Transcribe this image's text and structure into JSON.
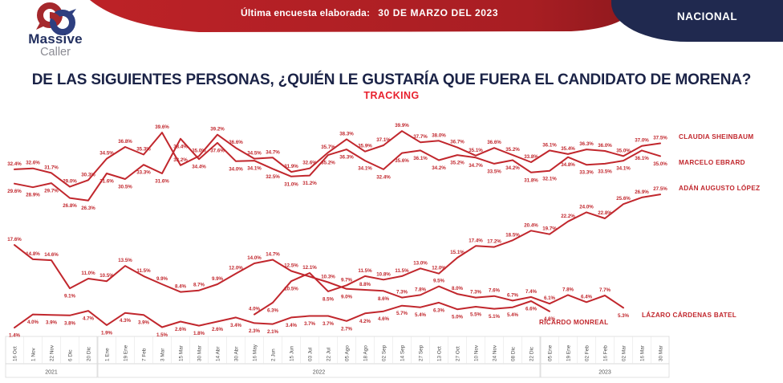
{
  "header": {
    "logo": {
      "line1": "Massive",
      "line2": "Caller"
    },
    "banner": {
      "label": "Última encuesta elaborada:",
      "date": "30 DE MARZO DEL 2023"
    },
    "region_badge": "NACIONAL"
  },
  "title": "DE LAS SIGUIENTES PERSONAS, ¿QUIÉN LE GUSTARÍA QUE FUERA EL CANDIDATO DE MORENA?",
  "subtitle": "TRACKING",
  "colors": {
    "line_red": "#c1272d",
    "title_navy": "#1b2347",
    "tracking_red": "#e8212e",
    "banner_red": "#b01f24",
    "badge_navy": "#20294f"
  },
  "chart_data": {
    "type": "line",
    "unit": "%",
    "ylim": [
      0,
      42
    ],
    "grid": false,
    "legend_position": "right-of-line-ends",
    "x_labels": [
      "16 Oct",
      "1 Nov",
      "22 Nov",
      "6 Dic",
      "20 Dic",
      "1 Ene",
      "19 Ene",
      "7 Feb",
      "3 Mar",
      "15 Mar",
      "30 Mar",
      "14 Abr",
      "30 Abr",
      "16 May",
      "2 Jun",
      "15 Jun",
      "03 Jul",
      "22 Jul",
      "05 Ago",
      "18 Ago",
      "02 Sep",
      "14 Sep",
      "27 Sep",
      "13 Oct",
      "27 Oct",
      "10 Nov",
      "24 Nov",
      "08 Dic",
      "22 Dic",
      "05 Ene",
      "19 Ene",
      "02 Feb",
      "16 Feb",
      "02 Mar",
      "16 Mar",
      "30 Mar"
    ],
    "year_groups": [
      {
        "label": "2021",
        "start": 0,
        "end": 4
      },
      {
        "label": "2022",
        "start": 5,
        "end": 28
      },
      {
        "label": "2023",
        "start": 29,
        "end": 35
      }
    ],
    "series": [
      {
        "id": "claudia-sheinbaum",
        "name": "CLAUDIA SHEINBAUM",
        "color": "#c1272d",
        "values": [
          32.4,
          32.6,
          31.7,
          29.0,
          30.3,
          34.5,
          36.8,
          35.3,
          39.6,
          33.2,
          35.0,
          39.2,
          36.6,
          34.5,
          34.7,
          31.9,
          32.6,
          35.7,
          38.3,
          35.9,
          37.1,
          39.9,
          37.7,
          38.0,
          36.7,
          35.1,
          36.6,
          35.2,
          33.8,
          36.1,
          35.4,
          36.3,
          36.0,
          35.0,
          37.0,
          37.5
        ]
      },
      {
        "id": "marcelo-ebrard",
        "name": "MARCELO EBRARD",
        "color": "#c1272d",
        "values": [
          29.6,
          28.9,
          29.7,
          26.8,
          26.3,
          31.6,
          30.5,
          33.3,
          31.6,
          38.4,
          34.4,
          37.6,
          34.0,
          34.1,
          32.5,
          31.0,
          31.2,
          35.2,
          36.3,
          34.1,
          32.4,
          35.6,
          36.1,
          34.2,
          35.2,
          34.7,
          33.5,
          34.2,
          31.8,
          32.1,
          34.8,
          33.3,
          33.5,
          34.1,
          36.1,
          35.0
        ]
      },
      {
        "id": "adan-augusto-lopez",
        "name": "ADÁN AUGUSTO LÓPEZ",
        "color": "#c1272d",
        "values": [
          null,
          null,
          null,
          null,
          null,
          null,
          null,
          null,
          null,
          null,
          null,
          null,
          null,
          4.0,
          6.3,
          10.5,
          12.1,
          8.5,
          9.7,
          11.5,
          10.8,
          11.5,
          13.0,
          12.0,
          15.1,
          17.4,
          17.2,
          18.5,
          20.4,
          19.7,
          22.2,
          24.0,
          22.8,
          25.6,
          26.9,
          27.5
        ]
      },
      {
        "id": "lazaro-cardenas-batel",
        "name": "LÁZARO CÁRDENAS BATEL",
        "color": "#c1272d",
        "values": [
          17.6,
          14.8,
          14.6,
          9.1,
          11.0,
          10.5,
          13.5,
          11.5,
          9.9,
          8.4,
          8.7,
          9.9,
          12.0,
          14.0,
          14.7,
          12.5,
          null,
          10.3,
          9.0,
          8.8,
          8.6,
          7.3,
          7.8,
          9.5,
          8.0,
          7.3,
          7.6,
          6.7,
          7.4,
          6.1,
          7.8,
          6.4,
          7.7,
          5.3,
          null,
          null
        ]
      },
      {
        "id": "ricardo-monreal",
        "name": "RICARDO MONREAL",
        "color": "#c1272d",
        "values": [
          1.4,
          4.0,
          3.9,
          3.8,
          4.7,
          1.9,
          4.3,
          3.9,
          1.5,
          2.6,
          1.8,
          2.6,
          3.4,
          2.3,
          2.1,
          3.4,
          3.7,
          3.7,
          2.7,
          4.2,
          4.6,
          5.7,
          5.4,
          6.3,
          5.0,
          5.5,
          5.1,
          5.4,
          6.6,
          4.6,
          null,
          null,
          null,
          null,
          null,
          null
        ]
      }
    ]
  }
}
